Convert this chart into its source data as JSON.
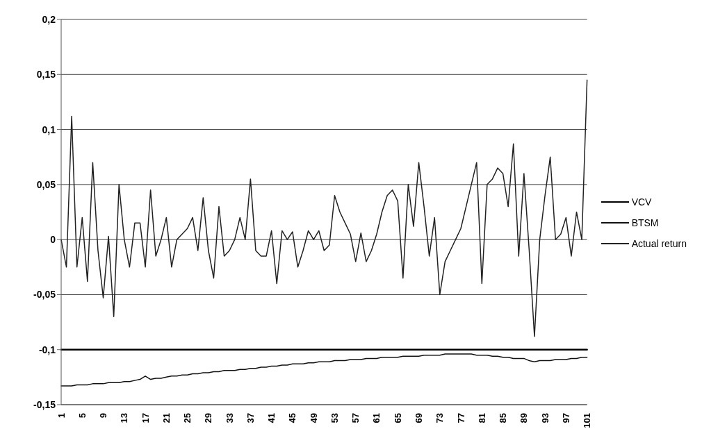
{
  "chart_data": {
    "type": "line",
    "categories": [
      "1",
      null,
      null,
      null,
      "5",
      null,
      null,
      null,
      "9",
      null,
      null,
      null,
      "13",
      null,
      null,
      null,
      "17",
      null,
      null,
      null,
      "21",
      null,
      null,
      null,
      "25",
      null,
      null,
      null,
      "29",
      null,
      null,
      null,
      "33",
      null,
      null,
      null,
      "37",
      null,
      null,
      null,
      "41",
      null,
      null,
      null,
      "45",
      null,
      null,
      null,
      "49",
      null,
      null,
      null,
      "53",
      null,
      null,
      null,
      "57",
      null,
      null,
      null,
      "61",
      null,
      null,
      null,
      "65",
      null,
      null,
      null,
      "69",
      null,
      null,
      null,
      "73",
      null,
      null,
      null,
      "77",
      null,
      null,
      null,
      "81",
      null,
      null,
      null,
      "85",
      null,
      null,
      null,
      "89",
      null,
      null,
      null,
      "93",
      null,
      null,
      null,
      "97",
      null,
      null,
      null,
      "101"
    ],
    "series": [
      {
        "name": "VCV",
        "color": "#000000",
        "values": [
          -0.1,
          -0.1,
          -0.1,
          -0.1,
          -0.1,
          -0.1,
          -0.1,
          -0.1,
          -0.1,
          -0.1,
          -0.1,
          -0.1,
          -0.1,
          -0.1,
          -0.1,
          -0.1,
          -0.1,
          -0.1,
          -0.1,
          -0.1,
          -0.1,
          -0.1,
          -0.1,
          -0.1,
          -0.1,
          -0.1,
          -0.1,
          -0.1,
          -0.1,
          -0.1,
          -0.1,
          -0.1,
          -0.1,
          -0.1,
          -0.1,
          -0.1,
          -0.1,
          -0.1,
          -0.1,
          -0.1,
          -0.1,
          -0.1,
          -0.1,
          -0.1,
          -0.1,
          -0.1,
          -0.1,
          -0.1,
          -0.1,
          -0.1,
          -0.1,
          -0.1,
          -0.1,
          -0.1,
          -0.1,
          -0.1,
          -0.1,
          -0.1,
          -0.1,
          -0.1,
          -0.1,
          -0.1,
          -0.1,
          -0.1,
          -0.1,
          -0.1,
          -0.1,
          -0.1,
          -0.1,
          -0.1,
          -0.1,
          -0.1,
          -0.1,
          -0.1,
          -0.1,
          -0.1,
          -0.1,
          -0.1,
          -0.1,
          -0.1,
          -0.1,
          -0.1,
          -0.1,
          -0.1,
          -0.1,
          -0.1,
          -0.1,
          -0.1,
          -0.1,
          -0.1,
          -0.1,
          -0.1,
          -0.1,
          -0.1,
          -0.1,
          -0.1,
          -0.1,
          -0.1,
          -0.1,
          -0.1,
          -0.1
        ]
      },
      {
        "name": "BTSM",
        "color": "#111111",
        "values": [
          -0.133,
          -0.133,
          -0.133,
          -0.132,
          -0.132,
          -0.132,
          -0.131,
          -0.131,
          -0.131,
          -0.13,
          -0.13,
          -0.13,
          -0.129,
          -0.129,
          -0.128,
          -0.127,
          -0.124,
          -0.127,
          -0.126,
          -0.126,
          -0.125,
          -0.124,
          -0.124,
          -0.123,
          -0.123,
          -0.122,
          -0.122,
          -0.121,
          -0.121,
          -0.12,
          -0.12,
          -0.119,
          -0.119,
          -0.119,
          -0.118,
          -0.118,
          -0.117,
          -0.117,
          -0.116,
          -0.116,
          -0.115,
          -0.115,
          -0.114,
          -0.114,
          -0.113,
          -0.113,
          -0.113,
          -0.112,
          -0.112,
          -0.111,
          -0.111,
          -0.111,
          -0.11,
          -0.11,
          -0.11,
          -0.109,
          -0.109,
          -0.109,
          -0.108,
          -0.108,
          -0.108,
          -0.107,
          -0.107,
          -0.107,
          -0.107,
          -0.106,
          -0.106,
          -0.106,
          -0.106,
          -0.105,
          -0.105,
          -0.105,
          -0.105,
          -0.104,
          -0.104,
          -0.104,
          -0.104,
          -0.104,
          -0.104,
          -0.105,
          -0.105,
          -0.105,
          -0.106,
          -0.106,
          -0.107,
          -0.107,
          -0.108,
          -0.108,
          -0.108,
          -0.11,
          -0.111,
          -0.11,
          -0.11,
          -0.11,
          -0.109,
          -0.109,
          -0.109,
          -0.108,
          -0.108,
          -0.107,
          -0.107
        ]
      },
      {
        "name": "Actual return",
        "color": "#222222",
        "values": [
          0.0,
          -0.025,
          0.112,
          -0.025,
          0.02,
          -0.038,
          0.07,
          -0.01,
          -0.053,
          0.003,
          -0.07,
          0.05,
          0.0,
          -0.025,
          0.015,
          0.015,
          -0.025,
          0.045,
          -0.015,
          0.0,
          0.02,
          -0.025,
          0.0,
          0.005,
          0.01,
          0.02,
          -0.01,
          0.038,
          -0.01,
          -0.035,
          0.03,
          -0.015,
          -0.01,
          0.0,
          0.02,
          0.0,
          0.055,
          -0.01,
          -0.015,
          -0.015,
          0.008,
          -0.04,
          0.008,
          0.0,
          0.007,
          -0.025,
          -0.01,
          0.008,
          0.0,
          0.008,
          -0.01,
          -0.005,
          0.04,
          0.025,
          0.015,
          0.005,
          -0.02,
          0.006,
          -0.02,
          -0.01,
          0.005,
          0.025,
          0.04,
          0.045,
          0.035,
          -0.035,
          0.05,
          0.012,
          0.07,
          0.03,
          -0.015,
          0.02,
          -0.05,
          -0.02,
          -0.01,
          0.0,
          0.01,
          0.03,
          0.05,
          0.07,
          -0.04,
          0.05,
          0.055,
          0.065,
          0.06,
          0.03,
          0.087,
          -0.015,
          0.06,
          -0.01,
          -0.088,
          0.0,
          0.04,
          0.075,
          0.0,
          0.005,
          0.02,
          -0.015,
          0.025,
          0.0,
          0.145
        ]
      }
    ],
    "ylim": [
      -0.15,
      0.2
    ],
    "yticks": [
      {
        "value": -0.15,
        "label": "-0,15"
      },
      {
        "value": -0.1,
        "label": "-0,1"
      },
      {
        "value": -0.05,
        "label": "-0,05"
      },
      {
        "value": 0,
        "label": "0"
      },
      {
        "value": 0.05,
        "label": "0,05"
      },
      {
        "value": 0.1,
        "label": "0,1"
      },
      {
        "value": 0.15,
        "label": "0,15"
      },
      {
        "value": 0.2,
        "label": "0,2"
      }
    ],
    "grid": "y",
    "legend": "right",
    "marker": "none",
    "line_style": "solid"
  }
}
